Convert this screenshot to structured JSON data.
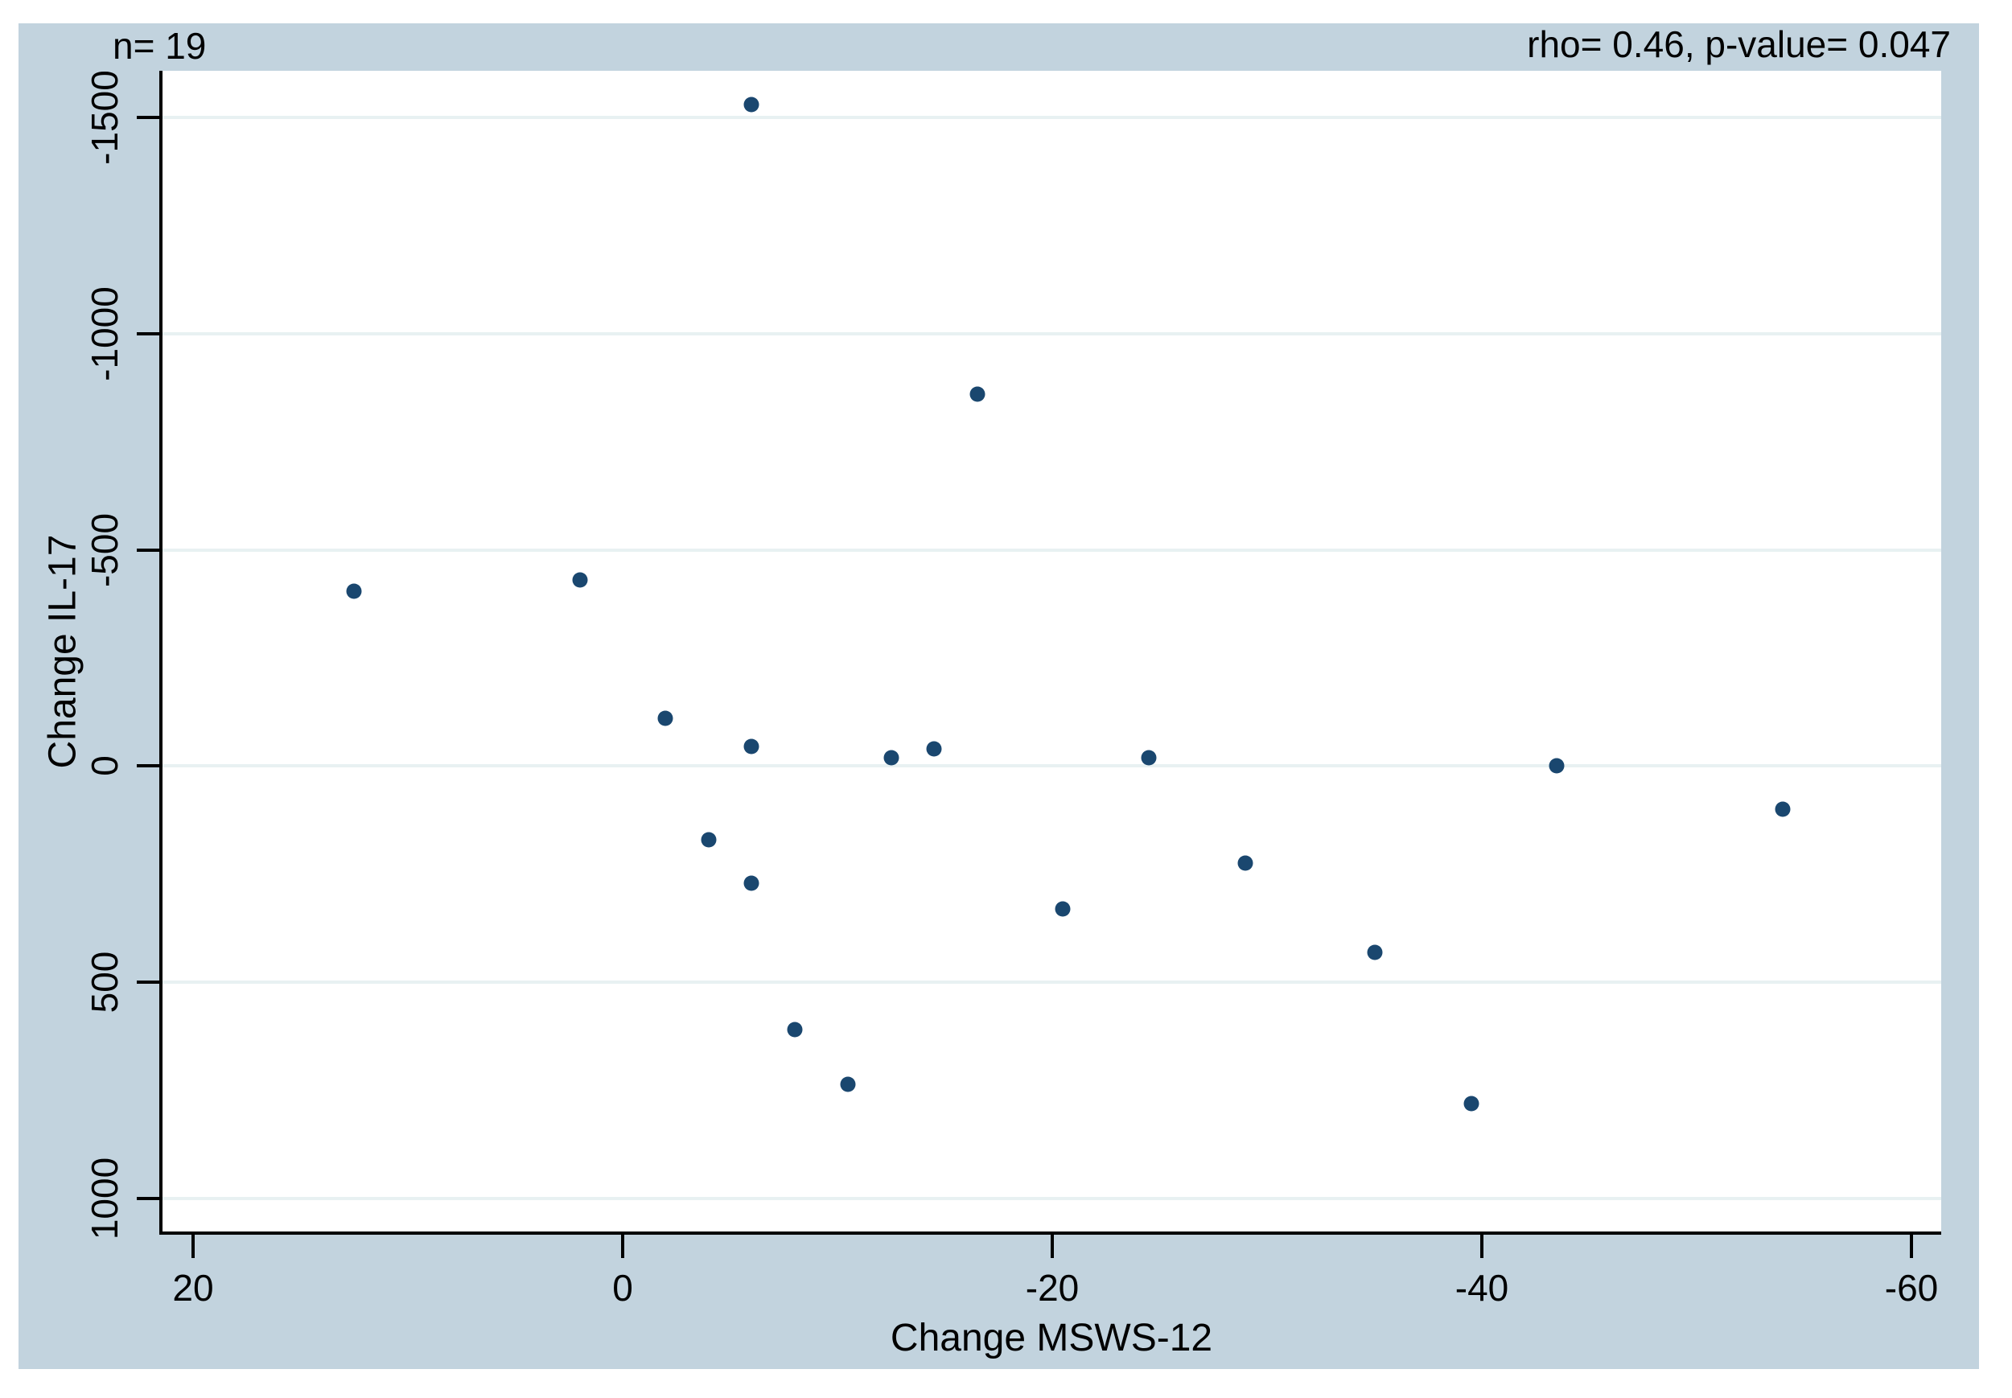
{
  "annotations": {
    "sample_size": "n= 19",
    "correlation": "rho= 0.46, p-value= 0.047"
  },
  "chart_data": {
    "type": "scatter",
    "title": "",
    "xlabel": "Change MSWS-12",
    "ylabel": "Change IL-17",
    "n": 19,
    "rho": 0.46,
    "p_value": 0.047,
    "x_ticks": [
      20,
      0,
      -20,
      -40,
      -60
    ],
    "y_ticks": [
      -1500,
      -1000,
      -500,
      0,
      500,
      1000
    ],
    "x_axis_reversed": true,
    "y_axis_reversed": true,
    "xlim": [
      21.5,
      -61.5
    ],
    "ylim": [
      -1610,
      1080
    ],
    "grid": "horizontal-only",
    "legend": "none",
    "points": [
      {
        "x": -6,
        "y": -1530
      },
      {
        "x": -16.5,
        "y": -860
      },
      {
        "x": 12.5,
        "y": -405
      },
      {
        "x": 2,
        "y": -430
      },
      {
        "x": -2,
        "y": -110
      },
      {
        "x": -6,
        "y": -45
      },
      {
        "x": -12.5,
        "y": -20
      },
      {
        "x": -14.5,
        "y": -40
      },
      {
        "x": -4,
        "y": 170
      },
      {
        "x": -6,
        "y": 270
      },
      {
        "x": -24.5,
        "y": -20
      },
      {
        "x": -29,
        "y": 225
      },
      {
        "x": -20.5,
        "y": 330
      },
      {
        "x": -35,
        "y": 430
      },
      {
        "x": -43.5,
        "y": 0
      },
      {
        "x": -54,
        "y": 100
      },
      {
        "x": -8,
        "y": 610
      },
      {
        "x": -10.5,
        "y": 735
      },
      {
        "x": -39.5,
        "y": 780
      }
    ]
  },
  "colors": {
    "page_bg": "#ffffff",
    "canvas_bg": "#c2d3de",
    "plot_bg": "#ffffff",
    "point": "#1a476f",
    "gridline": "#e8f1f2",
    "axis": "#000000",
    "text": "#000000"
  }
}
